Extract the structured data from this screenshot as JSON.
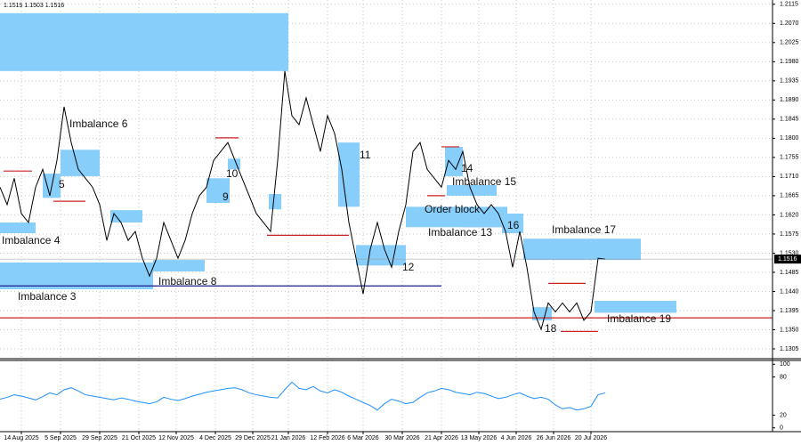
{
  "chart_data": {
    "type": "line",
    "header": "1.1519 1.1503 1.1516",
    "xlim": [
      0,
      217
    ],
    "ylim": [
      1.1282,
      1.2125
    ],
    "yticks": [
      1.2115,
      {
        "value": 1.207,
        "label": "1.2070"
      },
      1.2025,
      {
        "value": 1.198,
        "label": "1.1980"
      },
      1.1935,
      {
        "value": 1.189,
        "label": "1.1890"
      },
      1.1845,
      {
        "value": 1.18,
        "label": "1.1800"
      },
      1.1755,
      {
        "value": 1.171,
        "label": "1.1710"
      },
      1.1665,
      {
        "value": 1.162,
        "label": "1.1620"
      },
      1.1575,
      {
        "value": 1.153,
        "label": "1.1530"
      },
      1.1485,
      {
        "value": 1.144,
        "label": "1.1440"
      },
      1.1395,
      {
        "value": 1.135,
        "label": "1.1350"
      },
      1.1305
    ],
    "xticks": [
      {
        "value": 6,
        "label": "14 Aug 2025"
      },
      {
        "value": 17,
        "label": "5 Sep 2025"
      },
      {
        "value": 28,
        "label": "29 Sep 2025"
      },
      {
        "value": 39,
        "label": "21 Oct 2025"
      },
      {
        "value": 49.5,
        "label": "12 Nov 2025"
      },
      {
        "value": 60.5,
        "label": "4 Dec 2025"
      },
      {
        "value": 71,
        "label": "29 Dec 2025"
      },
      {
        "value": 81,
        "label": "21 Jan 2026"
      },
      {
        "value": 92,
        "label": "12 Feb 2026"
      },
      {
        "value": 102,
        "label": "6 Mar 2026"
      },
      {
        "value": 113,
        "label": "30 Mar 2026"
      },
      {
        "value": 124,
        "label": "21 Apr 2026"
      },
      {
        "value": 134.5,
        "label": "13 May 2026"
      },
      {
        "value": 145,
        "label": "4 Jun 2026"
      },
      {
        "value": 155.5,
        "label": "26 Jun 2026"
      },
      {
        "value": 166,
        "label": "20 Jul 2026"
      }
    ],
    "grid": true,
    "last_price": 1.1516,
    "x": [
      0,
      2,
      4,
      6,
      8,
      10,
      12,
      14,
      16,
      18,
      20,
      22,
      24,
      26,
      28,
      30,
      32,
      34,
      36,
      38,
      40,
      42,
      44,
      46,
      48,
      50,
      52,
      54,
      56,
      58,
      60,
      62,
      64,
      66,
      68,
      70,
      72,
      74,
      76,
      78,
      80,
      82,
      84,
      86,
      88,
      90,
      92,
      94,
      96,
      98,
      100,
      102,
      104,
      106,
      108,
      110,
      112,
      114,
      116,
      118,
      120,
      122,
      124,
      126,
      128,
      130,
      132,
      134,
      136,
      138,
      140,
      142,
      144,
      146,
      148,
      150,
      152,
      154,
      156,
      158,
      160,
      162,
      164,
      166,
      168,
      170
    ],
    "series": [
      {
        "color": "#000000",
        "values": [
          1.1685,
          1.1644,
          1.1706,
          1.1623,
          1.1602,
          1.1685,
          1.1727,
          1.1665,
          1.1748,
          1.1874,
          1.179,
          1.1727,
          1.1706,
          1.1685,
          1.1644,
          1.156,
          1.1623,
          1.1602,
          1.156,
          1.1581,
          1.1518,
          1.1476,
          1.1518,
          1.1602,
          1.156,
          1.1518,
          1.156,
          1.1623,
          1.1665,
          1.1685,
          1.1748,
          1.1769,
          1.179,
          1.1748,
          1.1706,
          1.1665,
          1.1623,
          1.1602,
          1.1581,
          1.1748,
          1.1958,
          1.1853,
          1.1832,
          1.1895,
          1.1832,
          1.1769,
          1.1853,
          1.1811,
          1.1727,
          1.1602,
          1.1518,
          1.1434,
          1.1539,
          1.1602,
          1.1539,
          1.1497,
          1.1581,
          1.1644,
          1.1769,
          1.179,
          1.1727,
          1.1706,
          1.1685,
          1.1748,
          1.1727,
          1.1769,
          1.1685,
          1.1644,
          1.1623,
          1.1644,
          1.1623,
          1.1581,
          1.1497,
          1.1581,
          1.1497,
          1.1392,
          1.1351,
          1.1413,
          1.1392,
          1.1413,
          1.1392,
          1.1413,
          1.1372,
          1.1392,
          1.1518,
          1.1516
        ]
      }
    ],
    "zones": [
      {
        "x": [
          0,
          81
        ],
        "price": [
          1.1958,
          1.2094
        ]
      },
      {
        "label": "Imbalance 6",
        "x": [
          17,
          28
        ],
        "price": [
          1.1711,
          1.1773
        ]
      },
      {
        "label": "5",
        "x": [
          12,
          17
        ],
        "price": [
          1.166,
          1.1717
        ]
      },
      {
        "label": "Imbalance 4",
        "x": [
          0,
          10
        ],
        "price": [
          1.1577,
          1.1602
        ]
      },
      {
        "label": "Imbalance 3",
        "x": [
          0,
          43
        ],
        "price": [
          1.1445,
          1.1508
        ]
      },
      {
        "label": "Imbalance 8",
        "x": [
          43,
          57.5
        ],
        "price": [
          1.1487,
          1.1514
        ]
      },
      {
        "x": [
          31,
          40
        ],
        "price": [
          1.1602,
          1.1631
        ]
      },
      {
        "label": "9",
        "x": [
          58,
          64.5
        ],
        "price": [
          1.1648,
          1.1706
        ]
      },
      {
        "label": "10",
        "x": [
          64,
          67.5
        ],
        "price": [
          1.1727,
          1.1752
        ]
      },
      {
        "x": [
          75.5,
          79
        ],
        "price": [
          1.1633,
          1.1669
        ]
      },
      {
        "label": "11",
        "x": [
          95,
          101
        ],
        "price": [
          1.1639,
          1.179
        ]
      },
      {
        "label": "12",
        "x": [
          100,
          114
        ],
        "price": [
          1.1501,
          1.1549
        ]
      },
      {
        "label": "Order block",
        "x": [
          114,
          142.5
        ],
        "price": [
          1.1591,
          1.1639
        ]
      },
      {
        "label": "Imbalance 13",
        "x": [
          130,
          142
        ],
        "price": [
          1.1591,
          1.162
        ]
      },
      {
        "label": "14",
        "x": [
          125,
          130
        ],
        "price": [
          1.1711,
          1.178
        ]
      },
      {
        "label": "Imbalance 15",
        "x": [
          125.5,
          139.5
        ],
        "price": [
          1.1665,
          1.169
        ]
      },
      {
        "label": "16",
        "x": [
          141,
          147
        ],
        "price": [
          1.1577,
          1.1623
        ]
      },
      {
        "label": "Imbalance 17",
        "x": [
          147,
          180
        ],
        "price": [
          1.1514,
          1.1564
        ]
      },
      {
        "label": "18",
        "x": [
          149.5,
          155
        ],
        "price": [
          1.1372,
          1.1403
        ]
      },
      {
        "label": "Imbalance 19",
        "x": [
          167,
          190
        ],
        "price": [
          1.139,
          1.1418
        ]
      }
    ],
    "zone_color": "#87cefa",
    "levels": [
      {
        "price": 1.1453,
        "x": [
          0,
          124
        ],
        "color": "#1c1c8a"
      },
      {
        "price": 1.1378,
        "x": [
          0,
          217
        ],
        "color": "#cc2222"
      },
      {
        "price": 1.1572,
        "x": [
          75,
          98
        ],
        "color": "#cc2222"
      },
      {
        "price": 1.1723,
        "x": [
          1,
          9
        ],
        "color": "#cc2222"
      },
      {
        "price": 1.1652,
        "x": [
          15,
          24
        ],
        "color": "#cc2222"
      },
      {
        "price": 1.1801,
        "x": [
          60.5,
          67
        ],
        "color": "#cc2222"
      },
      {
        "price": 1.178,
        "x": [
          124,
          129
        ],
        "color": "#cc2222"
      },
      {
        "price": 1.1665,
        "x": [
          120,
          125
        ],
        "color": "#cc2222"
      },
      {
        "price": 1.1459,
        "x": [
          154,
          164.5
        ],
        "color": "#cc2222"
      },
      {
        "price": 1.1346,
        "x": [
          157.5,
          168
        ],
        "color": "#cc2222"
      }
    ],
    "rsi": {
      "ylim": [
        -6,
        106
      ],
      "yticks": [
        100,
        80,
        20,
        0
      ],
      "color": "#1e90ff",
      "values": [
        45,
        48,
        52,
        50,
        47,
        44,
        49,
        55,
        52,
        60,
        63,
        58,
        52,
        50,
        48,
        46,
        44,
        47,
        45,
        42,
        40,
        38,
        41,
        48,
        45,
        43,
        46,
        50,
        53,
        56,
        58,
        60,
        62,
        63,
        60,
        55,
        52,
        50,
        48,
        47,
        60,
        72,
        62,
        60,
        65,
        58,
        55,
        60,
        56,
        50,
        45,
        40,
        35,
        28,
        38,
        45,
        42,
        38,
        40,
        48,
        55,
        58,
        62,
        60,
        56,
        54,
        52,
        56,
        54,
        50,
        46,
        48,
        52,
        55,
        50,
        46,
        48,
        45,
        36,
        30,
        32,
        28,
        30,
        34,
        52,
        55
      ]
    }
  }
}
